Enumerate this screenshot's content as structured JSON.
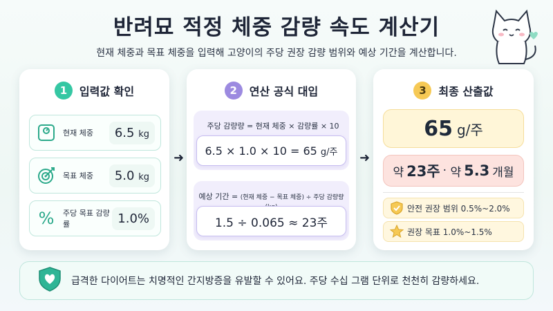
{
  "header": {
    "title": "반려묘 적정 체중 감량 속도 계산기",
    "subtitle": "현재 체중과 목표 체중을 입력해 고양이의 주당 권장 감량 범위와 예상 기간을 계산합니다."
  },
  "step1": {
    "number": "1",
    "title": "입력값 확인",
    "current": {
      "label": "현재 체중",
      "value": "6.5",
      "unit": "kg",
      "icon": "scale-icon"
    },
    "target": {
      "label": "목표 체중",
      "value": "5.0",
      "unit": "kg",
      "icon": "target-icon"
    },
    "rate": {
      "label": "주당 목표 감량률",
      "value": "1.0%",
      "icon": "percent-icon"
    }
  },
  "step2": {
    "number": "2",
    "title": "연산 공식 대입",
    "formula1_label": "주당 감량량 = 현재 체중 × 감량률 × 10",
    "formula1_value": "6.5 × 1.0 × 10 = 65",
    "formula1_unit": "g/주",
    "formula2_label_main": "예상 기간 = ",
    "formula2_label_detail": "(현재 체중 − 목표 체중) ÷ 주당 감량량(kg)",
    "formula2_value": "1.5 ÷ 0.065 ≈ 23주"
  },
  "step3": {
    "number": "3",
    "title": "최종 산출값",
    "weekly_value": "65",
    "weekly_unit": "g/주",
    "dur_prefix1": "약",
    "dur_weeks": "23주",
    "dur_sep": "·",
    "dur_prefix2": "약",
    "dur_months": "5.3",
    "dur_months_unit": "개월",
    "safe_range": "안전 권장 범위 0.5%~2.0%",
    "recommended": "권장 목표   1.0%~1.5%"
  },
  "warning": {
    "text": "급격한 다이어트는 치명적인 간지방증을 유발할 수 있어요. 주당 수십 그램 단위로 천천히 감량하세요."
  },
  "colors": {
    "accent_green": "#35c7a3",
    "accent_purple": "#9c8ae0",
    "accent_yellow": "#f6c955",
    "result_yellow": "#fff6d8",
    "result_pink": "#fde3df"
  }
}
